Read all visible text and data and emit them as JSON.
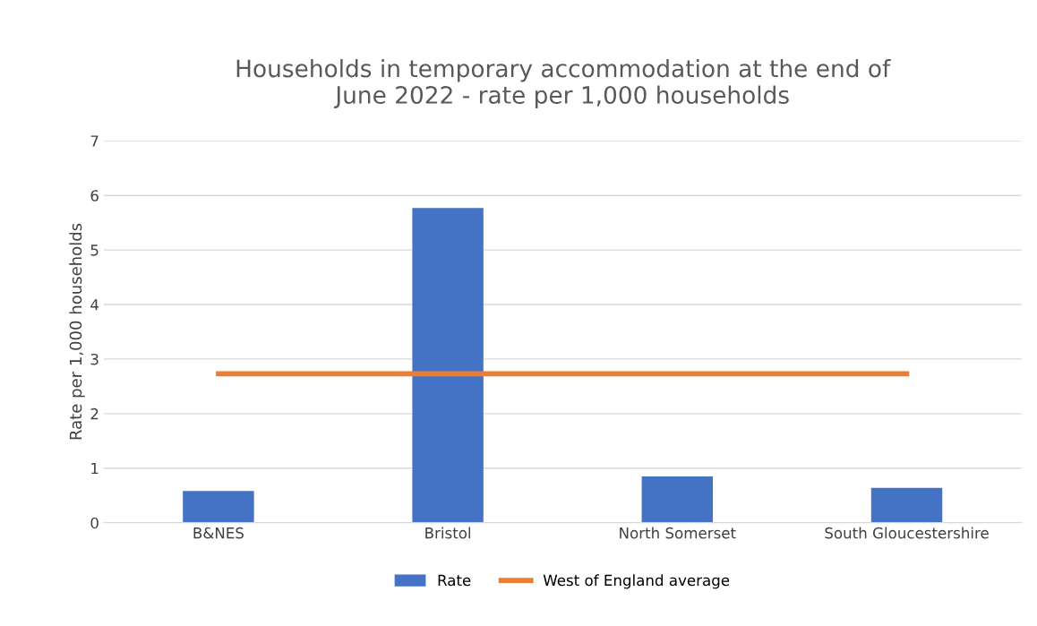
{
  "chart_data": {
    "type": "bar",
    "title": "Households in temporary accommodation at the end of\nJune 2022 - rate per 1,000 households",
    "ylabel": "Rate per 1,000 households",
    "categories": [
      "B&NES",
      "Bristol",
      "North Somerset",
      "South Gloucestershire"
    ],
    "series": [
      {
        "name": "Rate",
        "color": "#4472c4",
        "values": [
          0.58,
          5.77,
          0.85,
          0.64
        ]
      },
      {
        "name": "West of England average",
        "type": "line",
        "color": "#ed7d31",
        "values": [
          2.73,
          2.73,
          2.73,
          2.73
        ]
      }
    ],
    "ylim": [
      0,
      7
    ],
    "yticks": [
      0,
      1,
      2,
      3,
      4,
      5,
      6,
      7
    ],
    "grid": "y",
    "legend": "bottom",
    "marker": "none",
    "line_style": "solid"
  }
}
